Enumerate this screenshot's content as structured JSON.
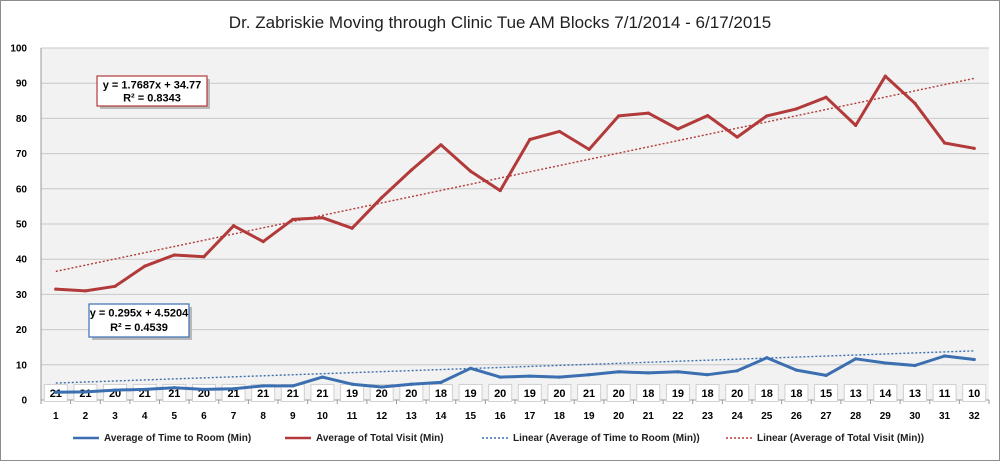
{
  "chart_data": {
    "type": "line",
    "title": "Dr. Zabriskie Moving through Clinic Tue AM Blocks 7/1/2014 - 6/17/2015",
    "xlabel": "",
    "ylabel": "",
    "ylim": [
      0,
      100
    ],
    "yticks": [
      0,
      10,
      20,
      30,
      40,
      50,
      60,
      70,
      80,
      90,
      100
    ],
    "grid": true,
    "legend_position": "bottom",
    "x": [
      "1",
      "2",
      "3",
      "4",
      "5",
      "6",
      "7",
      "8",
      "9",
      "10",
      "11",
      "12",
      "13",
      "14",
      "15",
      "16",
      "17",
      "18",
      "19",
      "20",
      "21",
      "22",
      "23",
      "24",
      "25",
      "26",
      "27",
      "28",
      "29",
      "30",
      "31",
      "32"
    ],
    "series": [
      {
        "name": "Average of Time to Room (Min)",
        "color": "#3b6fb0",
        "values": [
          2.2,
          2.3,
          2.8,
          3.0,
          3.5,
          3.0,
          3.2,
          4.0,
          4.0,
          6.5,
          4.5,
          3.7,
          4.5,
          5.0,
          9.0,
          6.5,
          6.8,
          6.5,
          7.2,
          8.0,
          7.7,
          8.0,
          7.2,
          8.3,
          12.0,
          8.5,
          7.0,
          11.7,
          10.5,
          9.8,
          12.5,
          11.5
        ]
      },
      {
        "name": "Average of Total Visit (Min)",
        "color": "#b23a3a",
        "values": [
          31.5,
          31.0,
          32.3,
          38.0,
          41.2,
          40.7,
          49.5,
          45.0,
          51.3,
          51.8,
          48.8,
          57.5,
          65.3,
          72.5,
          65.0,
          59.5,
          74.0,
          76.3,
          71.2,
          80.7,
          81.5,
          77.0,
          80.8,
          74.7,
          80.7,
          82.7,
          86.0,
          78.0,
          92.0,
          84.3,
          73.0,
          71.5
        ]
      }
    ],
    "trendlines": [
      {
        "name": "Linear (Average of Time to Room (Min))",
        "color": "#3b6fb0",
        "slope": 0.295,
        "intercept": 4.5204,
        "equation": "y = 0.295x + 4.5204",
        "r_squared": "R² = 0.4539"
      },
      {
        "name": "Linear (Average of Total Visit (Min))",
        "color": "#b23a3a",
        "slope": 1.7687,
        "intercept": 34.77,
        "equation": "y = 1.7687x + 34.77",
        "r_squared": "R² = 0.8343"
      }
    ],
    "counts": [
      "21",
      "21",
      "20",
      "21",
      "21",
      "20",
      "21",
      "21",
      "21",
      "21",
      "19",
      "20",
      "20",
      "18",
      "19",
      "20",
      "19",
      "20",
      "21",
      "20",
      "18",
      "19",
      "18",
      "20",
      "18",
      "18",
      "15",
      "13",
      "14",
      "13",
      "11",
      "10"
    ]
  }
}
